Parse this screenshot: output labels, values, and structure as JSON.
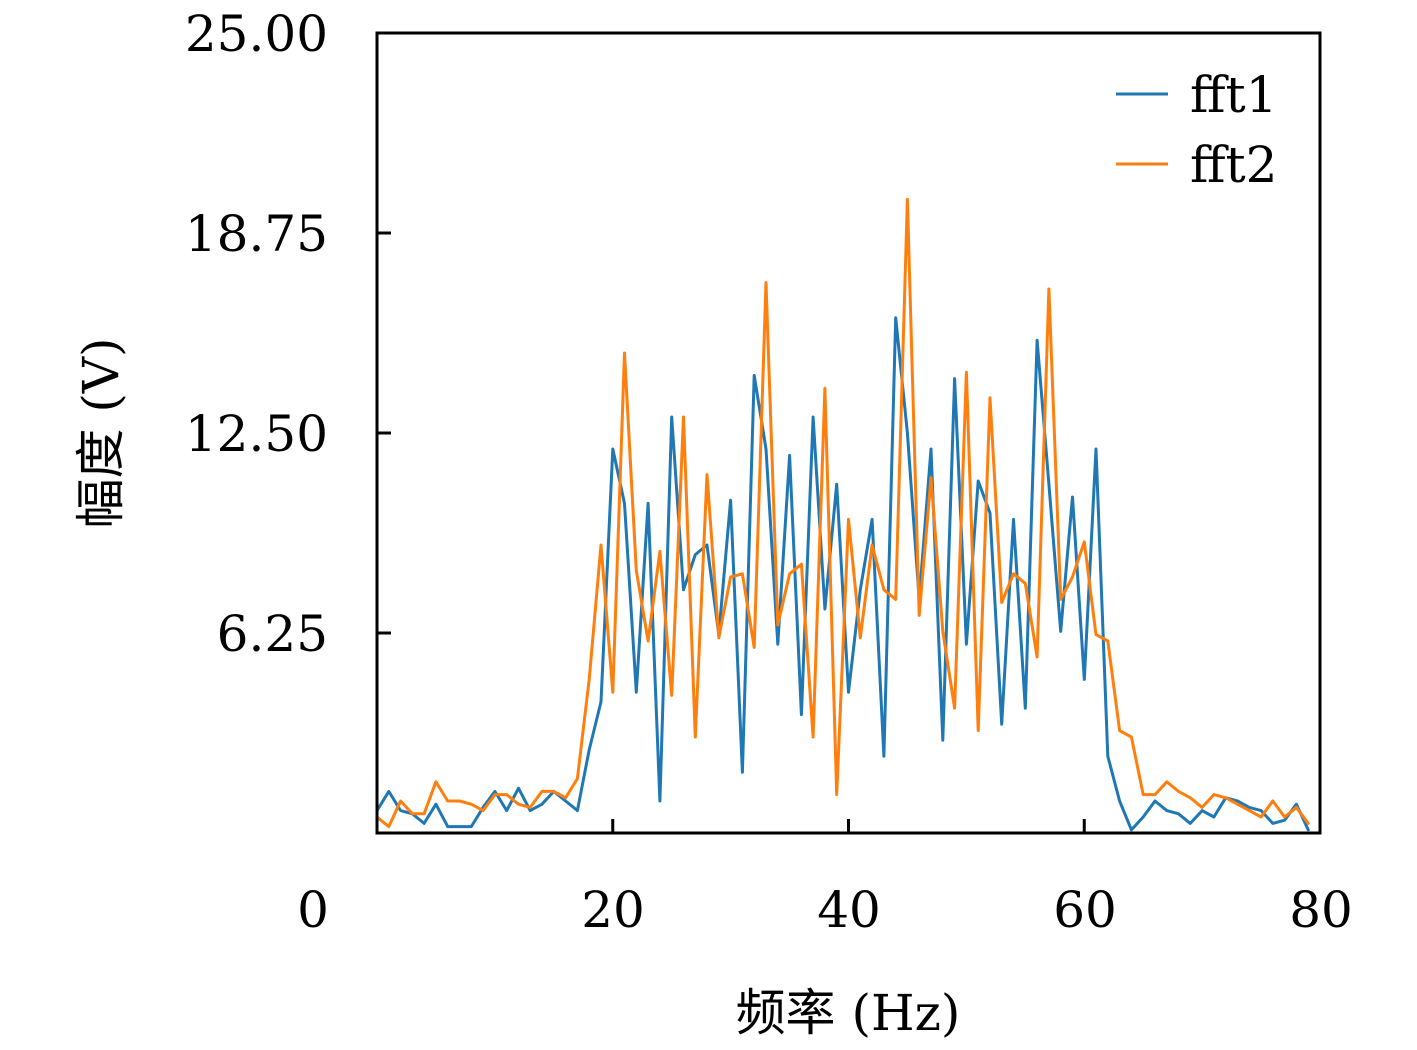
{
  "chart_data": {
    "type": "line",
    "xlabel": "频率 (Hz)",
    "ylabel": "幅度 (V)",
    "xlim": [
      0,
      80
    ],
    "ylim": [
      0,
      25
    ],
    "xticks": [
      "0",
      "20",
      "40",
      "60",
      "80"
    ],
    "yticks": [
      "6.25",
      "12.50",
      "18.75",
      "25.00"
    ],
    "ytick_values": [
      6.25,
      12.5,
      18.75,
      25
    ],
    "xtick_values": [
      20,
      40,
      60
    ],
    "legend_position": "top-right",
    "grid": false,
    "series": [
      {
        "name": "fft1",
        "color": "#1f77b4",
        "x": [
          0,
          1,
          2,
          3,
          4,
          5,
          6,
          7,
          8,
          9,
          10,
          11,
          12,
          13,
          14,
          15,
          16,
          17,
          18,
          19,
          20,
          21,
          22,
          23,
          24,
          25,
          26,
          27,
          28,
          29,
          30,
          31,
          32,
          33,
          34,
          35,
          36,
          37,
          38,
          39,
          40,
          41,
          42,
          43,
          44,
          45,
          46,
          47,
          48,
          49,
          50,
          51,
          52,
          53,
          54,
          55,
          56,
          57,
          58,
          59,
          60,
          61,
          62,
          63,
          64,
          65,
          66,
          67,
          68,
          69,
          70,
          71,
          72,
          73,
          74,
          75,
          76,
          77,
          78,
          79
        ],
        "y": [
          0.7,
          1.3,
          0.7,
          0.6,
          0.3,
          0.9,
          0.2,
          0.2,
          0.2,
          0.8,
          1.3,
          0.7,
          1.4,
          0.7,
          0.9,
          1.3,
          1.0,
          0.7,
          2.6,
          4.1,
          12.0,
          10.3,
          4.4,
          10.3,
          1.0,
          13.0,
          7.6,
          8.7,
          9.0,
          6.2,
          10.4,
          1.9,
          14.3,
          12.0,
          5.9,
          11.8,
          3.7,
          13.0,
          7.0,
          10.9,
          4.4,
          7.6,
          9.8,
          2.4,
          16.1,
          12.5,
          7.3,
          12.0,
          2.9,
          14.2,
          5.9,
          11.0,
          10.0,
          3.4,
          9.8,
          3.9,
          15.4,
          10.9,
          6.3,
          10.5,
          4.8,
          12.0,
          2.4,
          1.0,
          0.1,
          0.5,
          1.0,
          0.7,
          0.6,
          0.3,
          0.7,
          0.5,
          1.1,
          1.0,
          0.8,
          0.7,
          0.3,
          0.4,
          0.9,
          0.1
        ]
      },
      {
        "name": "fft2",
        "color": "#ff7f0e",
        "x": [
          0,
          1,
          2,
          3,
          4,
          5,
          6,
          7,
          8,
          9,
          10,
          11,
          12,
          13,
          14,
          15,
          16,
          17,
          18,
          19,
          20,
          21,
          22,
          23,
          24,
          25,
          26,
          27,
          28,
          29,
          30,
          31,
          32,
          33,
          34,
          35,
          36,
          37,
          38,
          39,
          40,
          41,
          42,
          43,
          44,
          45,
          46,
          47,
          48,
          49,
          50,
          51,
          52,
          53,
          54,
          55,
          56,
          57,
          58,
          59,
          60,
          61,
          62,
          63,
          64,
          65,
          66,
          67,
          68,
          69,
          70,
          71,
          72,
          73,
          74,
          75,
          76,
          77,
          78,
          79
        ],
        "y": [
          0.5,
          0.2,
          1.0,
          0.6,
          0.6,
          1.6,
          1.0,
          1.0,
          0.9,
          0.7,
          1.2,
          1.2,
          0.9,
          0.8,
          1.3,
          1.3,
          1.1,
          1.7,
          4.8,
          9.0,
          4.4,
          15.0,
          8.2,
          6.0,
          8.8,
          4.3,
          13.0,
          3.0,
          11.2,
          6.1,
          8.0,
          8.1,
          5.8,
          17.2,
          6.5,
          8.1,
          8.4,
          3.0,
          13.9,
          1.2,
          9.8,
          6.1,
          9.0,
          7.6,
          7.3,
          19.8,
          6.8,
          11.1,
          6.3,
          3.9,
          14.4,
          3.2,
          13.6,
          7.2,
          8.1,
          7.8,
          5.5,
          17.0,
          7.3,
          8.0,
          9.1,
          6.2,
          6.0,
          3.2,
          3.0,
          1.2,
          1.2,
          1.6,
          1.3,
          1.1,
          0.8,
          1.2,
          1.1,
          0.9,
          0.7,
          0.5,
          1.0,
          0.5,
          0.8,
          0.3
        ]
      }
    ]
  }
}
